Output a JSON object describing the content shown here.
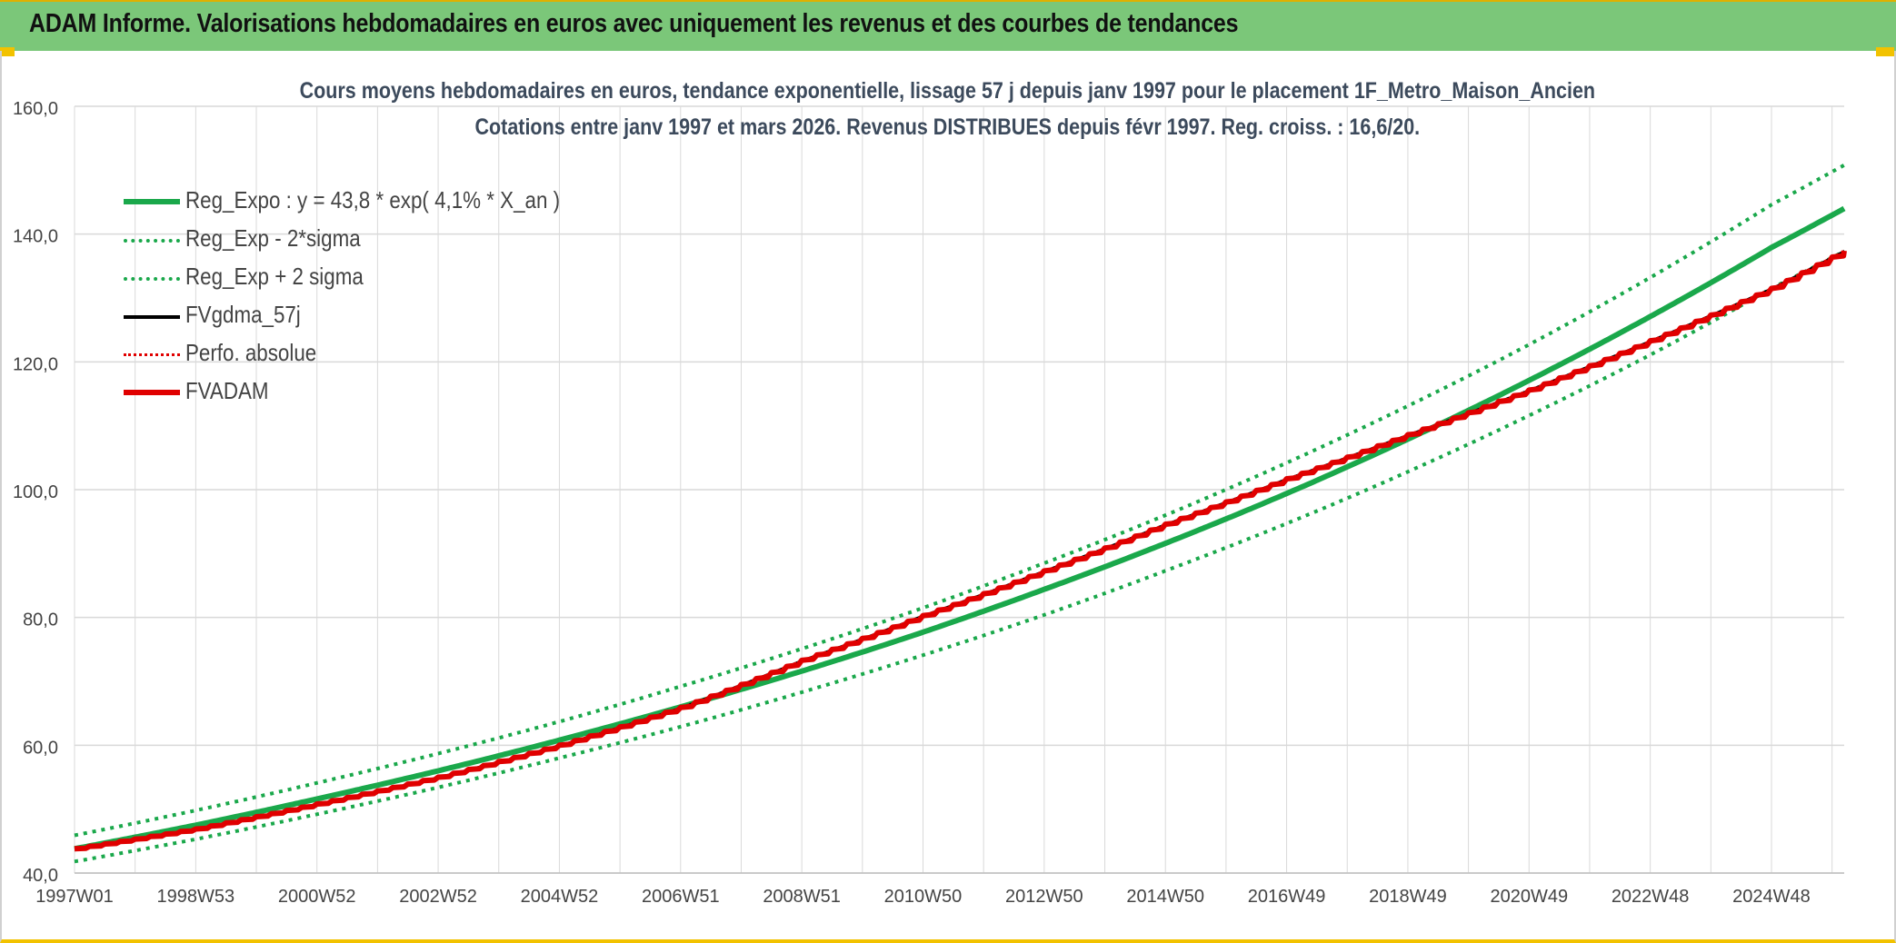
{
  "banner": {
    "title": "ADAM Informe. Valorisations hebdomadaires en euros avec uniquement les revenus et des courbes de tendances"
  },
  "colors": {
    "banner_bg": "#7bc779",
    "regression": "#1aa84b",
    "fvadam": "#e00000",
    "fvgdma": "#000000",
    "grid": "#d9d9d9"
  },
  "chart_data": {
    "type": "line",
    "title": "Cours moyens hebdomadaires en euros, tendance exponentielle, lissage 57 j depuis janv 1997 pour le placement 1F_Metro_Maison_Ancien",
    "subtitle": "Cotations entre janv 1997 et mars 2026. Revenus DISTRIBUES depuis févr 1997. Reg. croiss. : 16,6/20.",
    "ylim": [
      40,
      160
    ],
    "xlim": [
      1997.0,
      2026.2
    ],
    "y_ticks": [
      "40,0",
      "60,0",
      "80,0",
      "100,0",
      "120,0",
      "140,0",
      "160,0"
    ],
    "y_tick_values": [
      40,
      60,
      80,
      100,
      120,
      140,
      160
    ],
    "x_ticks": [
      "1997W01",
      "1998W53",
      "2000W52",
      "2002W52",
      "2004W52",
      "2006W51",
      "2008W51",
      "2010W50",
      "2012W50",
      "2014W50",
      "2016W49",
      "2018W49",
      "2020W49",
      "2022W48",
      "2024W48"
    ],
    "x_tick_years": [
      1997.0,
      1999.0,
      2001.0,
      2003.0,
      2005.0,
      2007.0,
      2009.0,
      2011.0,
      2013.0,
      2015.0,
      2017.0,
      2019.0,
      2021.0,
      2023.0,
      2025.0
    ],
    "grid": true,
    "legend_position": "top-left",
    "series": [
      {
        "name": "Reg_Expo : y = 43,8 * exp( 4,1% *  X_an )",
        "style": "solid-thick",
        "color": "#1aa84b",
        "x": [
          1997,
          1999,
          2001,
          2003,
          2005,
          2007,
          2009,
          2011,
          2013,
          2015,
          2017,
          2019,
          2021,
          2023,
          2025,
          2026.2
        ],
        "values": [
          43.8,
          47.5,
          51.6,
          56.0,
          60.8,
          66.0,
          71.6,
          77.7,
          84.4,
          91.6,
          99.4,
          107.9,
          117.1,
          127.1,
          137.9,
          144.0
        ]
      },
      {
        "name": "Reg_Exp - 2*sigma",
        "style": "dotted",
        "color": "#1aa84b",
        "x": [
          1997,
          1999,
          2001,
          2003,
          2005,
          2007,
          2009,
          2011,
          2013,
          2015,
          2017,
          2019,
          2021,
          2023,
          2025,
          2026.2
        ],
        "values": [
          41.8,
          45.3,
          49.2,
          53.4,
          58.0,
          62.9,
          68.3,
          74.1,
          80.4,
          87.3,
          94.7,
          102.8,
          111.6,
          121.1,
          131.5,
          137.3
        ]
      },
      {
        "name": "Reg_Exp + 2 sigma",
        "style": "dotted",
        "color": "#1aa84b",
        "x": [
          1997,
          1999,
          2001,
          2003,
          2005,
          2007,
          2009,
          2011,
          2013,
          2015,
          2017,
          2019,
          2021,
          2023,
          2025,
          2026.2
        ],
        "values": [
          45.9,
          49.8,
          54.1,
          58.7,
          63.7,
          69.2,
          75.1,
          81.5,
          88.5,
          96.0,
          104.2,
          113.1,
          122.7,
          133.2,
          144.6,
          150.8
        ]
      },
      {
        "name": "FVgdma_57j",
        "style": "solid",
        "color": "#000000",
        "x": [
          1997,
          1999,
          2001,
          2003,
          2005,
          2007,
          2009,
          2011,
          2013,
          2015,
          2017,
          2019,
          2021,
          2023,
          2025,
          2026.2
        ],
        "values": [
          43.8,
          46.9,
          50.8,
          55.0,
          60.0,
          65.9,
          73.3,
          80.3,
          87.3,
          94.6,
          101.7,
          108.6,
          115.6,
          123.3,
          131.5,
          137.4
        ]
      },
      {
        "name": "Perfo. absolue",
        "style": "dotted",
        "color": "#e00000",
        "x": [
          1997,
          1999,
          2001,
          2003,
          2005,
          2007,
          2009,
          2011,
          2013,
          2015,
          2017,
          2019,
          2021,
          2023,
          2025,
          2026.2
        ],
        "values": [
          43.8,
          46.9,
          50.8,
          55.0,
          60.0,
          65.9,
          73.3,
          80.3,
          87.3,
          94.6,
          101.7,
          108.6,
          115.6,
          123.3,
          131.5,
          137.4
        ]
      },
      {
        "name": "FVADAM",
        "style": "solid-thick-stepped",
        "color": "#e00000",
        "x": [
          1997,
          1999,
          2001,
          2003,
          2005,
          2007,
          2009,
          2011,
          2013,
          2015,
          2017,
          2019,
          2021,
          2023,
          2025,
          2026.2
        ],
        "values": [
          43.8,
          46.9,
          50.8,
          55.0,
          60.0,
          65.9,
          73.3,
          80.3,
          87.3,
          94.6,
          101.7,
          108.6,
          115.6,
          123.3,
          131.5,
          137.4
        ]
      }
    ]
  }
}
